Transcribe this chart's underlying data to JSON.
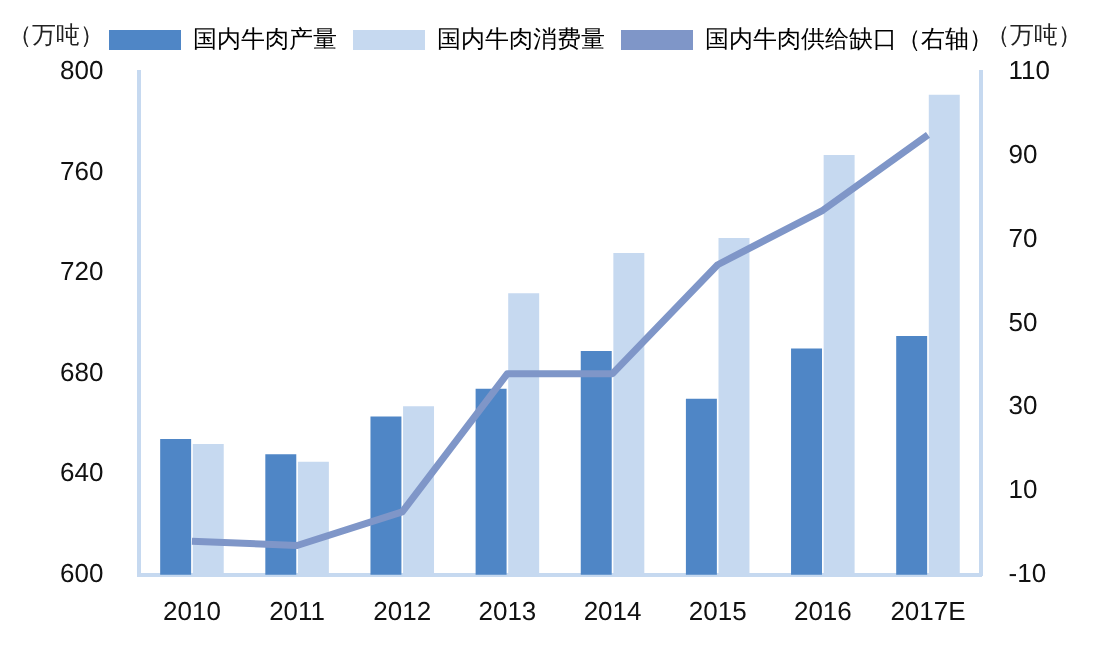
{
  "chart_data": {
    "type": "bar",
    "ylabel": "（万吨）",
    "y2label": "（万吨）",
    "categories": [
      "2010",
      "2011",
      "2012",
      "2013",
      "2014",
      "2015",
      "2016",
      "2017E"
    ],
    "series": [
      {
        "name": "国内牛肉产量",
        "color": "#4f86c6",
        "values": [
          654,
          648,
          663,
          674,
          689,
          670,
          690,
          695
        ]
      },
      {
        "name": "国内牛肉消费量",
        "color": "#c6d9f0",
        "values": [
          652,
          645,
          667,
          712,
          728,
          734,
          767,
          791
        ]
      },
      {
        "name": "国内牛肉供给缺口（右轴）",
        "type": "line",
        "axis": "y2",
        "color": "#7f96c8",
        "values": [
          -2,
          -3,
          5,
          38,
          38,
          64,
          77,
          95
        ]
      }
    ],
    "ylim": [
      600,
      800
    ],
    "yticks": [
      600,
      640,
      680,
      720,
      760,
      800
    ],
    "y2lim": [
      -10,
      110
    ],
    "y2ticks": [
      -10,
      10,
      30,
      50,
      70,
      90,
      110
    ],
    "grid": false,
    "legend": "top",
    "marker": "none"
  }
}
